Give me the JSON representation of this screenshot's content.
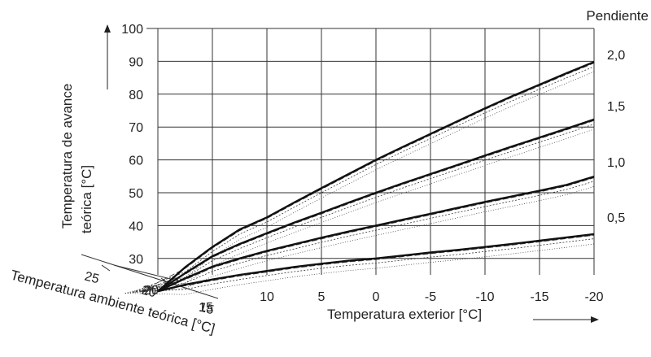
{
  "chart_data": {
    "type": "line",
    "title": "",
    "xlabel": "Temperatura exterior [°C]",
    "ylabel_line1": "Temperatura de avance",
    "ylabel_line2": "teórica [°C]",
    "secondary_axis_label": "Temperatura ambiente teórica [°C]",
    "slope_header": "Pendiente",
    "x_ticks": [
      20,
      15,
      10,
      5,
      0,
      -5,
      -10,
      -15,
      -20
    ],
    "x_tick_labels": [
      "20",
      "15",
      "10",
      "5",
      "0",
      "-5",
      "-10",
      "-15",
      "-20"
    ],
    "xlim": [
      20,
      -20
    ],
    "y_ticks": [
      30,
      40,
      50,
      60,
      70,
      80,
      90,
      100
    ],
    "y_tick_labels": [
      "30",
      "40",
      "50",
      "60",
      "70",
      "80",
      "90",
      "100"
    ],
    "ylim": [
      25,
      100
    ],
    "room_temp_ticks": [
      "25",
      "20",
      "15"
    ],
    "slope_labels": [
      "2,0",
      "1,5",
      "1,0",
      "0,5"
    ],
    "grid": true,
    "series": [
      {
        "name": "2,0",
        "x": [
          20,
          17.5,
          15,
          12.5,
          10,
          7.5,
          5,
          2.5,
          0,
          -2.5,
          -5,
          -7.5,
          -10,
          -12.5,
          -15,
          -17.5,
          -20
        ],
        "values": [
          20,
          27.3,
          33.5,
          38.8,
          42.5,
          47.0,
          51.4,
          55.7,
          60.0,
          64.0,
          67.9,
          71.8,
          75.7,
          79.4,
          82.9,
          86.4,
          89.8
        ]
      },
      {
        "name": "1,5",
        "x": [
          20,
          17.5,
          15,
          12.5,
          10,
          7.5,
          5,
          2.5,
          0,
          -2.5,
          -5,
          -7.5,
          -10,
          -12.5,
          -15,
          -17.5,
          -20
        ],
        "values": [
          20,
          25.5,
          30.7,
          34.4,
          37.7,
          40.9,
          43.9,
          47.0,
          50.0,
          52.9,
          55.7,
          58.5,
          61.3,
          64.1,
          66.8,
          69.5,
          72.3
        ]
      },
      {
        "name": "1,0",
        "x": [
          20,
          17.5,
          15,
          12.5,
          10,
          7.5,
          5,
          2.5,
          0,
          -2.5,
          -5,
          -7.5,
          -10,
          -12.5,
          -15,
          -17.5,
          -20
        ],
        "values": [
          20,
          23.9,
          27.5,
          30.0,
          32.3,
          34.3,
          36.3,
          38.2,
          40.0,
          41.8,
          43.6,
          45.4,
          47.2,
          48.9,
          50.6,
          52.4,
          54.9
        ]
      },
      {
        "name": "0,5",
        "x": [
          20,
          17.5,
          15,
          12.5,
          10,
          7.5,
          5,
          2.5,
          0,
          -2.5,
          -5,
          -7.5,
          -10,
          -12.5,
          -15,
          -17.5,
          -20
        ],
        "values": [
          20,
          22.0,
          23.6,
          25.0,
          26.2,
          27.4,
          28.4,
          29.3,
          30.0,
          30.9,
          31.8,
          32.6,
          33.5,
          34.4,
          35.4,
          36.4,
          37.4
        ]
      }
    ]
  }
}
